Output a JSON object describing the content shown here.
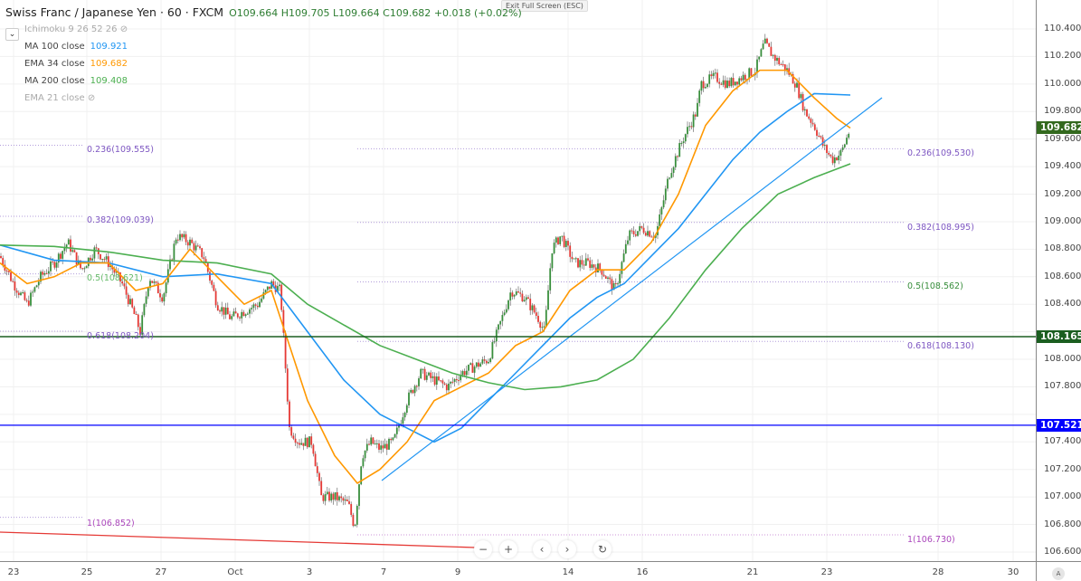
{
  "header": {
    "symbol": "Swiss Franc / Japanese Yen · 60 · FXCM",
    "open": "O109.664",
    "high": "H109.705",
    "low": "L109.664",
    "close": "C109.682",
    "change": "+0.018 (+0.02%)"
  },
  "exit_fullscreen": "Exit Full Screen (ESC)",
  "indicators": [
    {
      "label": "Ichimoku 9 26 52 26",
      "value": "",
      "hidden": true
    },
    {
      "label": "MA  100 close",
      "value": "109.921",
      "color": "#2196f3"
    },
    {
      "label": "EMA 34 close",
      "value": "109.682",
      "color": "#ff9800"
    },
    {
      "label": "MA  200 close",
      "value": "109.408",
      "color": "#4caf50"
    },
    {
      "label": "EMA 21 close",
      "value": "",
      "hidden": true
    }
  ],
  "price_axis": [
    "110.400",
    "110.200",
    "110.000",
    "109.800",
    "109.600",
    "109.400",
    "109.200",
    "109.000",
    "108.800",
    "108.600",
    "108.400",
    "108.000",
    "107.800",
    "107.400",
    "107.200",
    "107.000",
    "106.800",
    "106.600"
  ],
  "price_tags": [
    {
      "value": "109.682",
      "color": "#33691e"
    },
    {
      "value": "108.165",
      "color": "#1b5e20"
    },
    {
      "value": "107.521",
      "color": "#0000ff"
    }
  ],
  "time_axis": [
    "23",
    "25",
    "27",
    "Oct",
    "3",
    "7",
    "9",
    "14",
    "16",
    "21",
    "23",
    "28",
    "30"
  ],
  "fib_left": [
    "0.236(109.555)",
    "0.382(109.039)",
    "0.5(108.621)",
    "0.618(108.204)",
    "1(106.852)"
  ],
  "fib_right": [
    "0.236(109.530)",
    "0.382(108.995)",
    "0.5(108.562)",
    "0.618(108.130)",
    "1(106.730)"
  ],
  "controls": {
    "zoom_out": "−",
    "zoom_in": "+",
    "prev": "‹",
    "next": "›",
    "reset": "↻",
    "auto": "A"
  },
  "colors": {
    "up": "#388e3c",
    "down": "#e53935",
    "ma100": "#2196f3",
    "ema34": "#ff9800",
    "ma200": "#4caf50"
  }
}
